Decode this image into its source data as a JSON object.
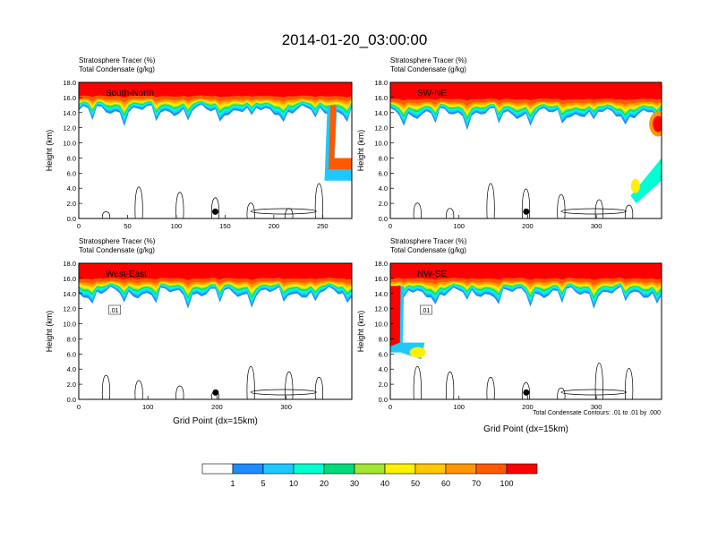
{
  "figure_title": "2014-01-20_03:00:00",
  "panel_header": {
    "line1": "Stratosphere Tracer   (%)",
    "line2": "Total Condensate   (g/kg)"
  },
  "footnote": "Total Condensate Contours: .01 to .01 by .000",
  "colors": {
    "levels": [
      "#ffffff",
      "#1e8cff",
      "#1ec8ff",
      "#00ffd2",
      "#00dc7a",
      "#00e600",
      "#a0e632",
      "#fff000",
      "#ffc800",
      "#ff9600",
      "#ff5a00",
      "#ff0000"
    ]
  },
  "chart_data": [
    {
      "type": "heatmap",
      "panel_label": "South-North",
      "ylabel": "Height (km)",
      "xlabel": "",
      "xlim": [
        0,
        280
      ],
      "ylim": [
        0,
        18
      ],
      "x_ticks": [
        0,
        50,
        100,
        150,
        200,
        250
      ],
      "y_ticks": [
        "0.0",
        "2.0",
        "4.0",
        "6.0",
        "8.0",
        "10.0",
        "12.0",
        "14.0",
        "16.0",
        "18.0"
      ],
      "tracer_top_km": 15.6,
      "marker_x": 140,
      "contour_label": ""
    },
    {
      "type": "heatmap",
      "panel_label": "SW-NE",
      "ylabel": "Height (km)",
      "xlabel": "",
      "xlim": [
        0,
        395
      ],
      "ylim": [
        0,
        18
      ],
      "x_ticks": [
        0,
        100,
        200,
        300
      ],
      "y_ticks": [
        "0.0",
        "2.0",
        "4.0",
        "6.0",
        "8.0",
        "10.0",
        "12.0",
        "14.0",
        "16.0",
        "18.0"
      ],
      "tracer_top_km": 15.2,
      "marker_x": 198,
      "contour_label": ""
    },
    {
      "type": "heatmap",
      "panel_label": "West-East",
      "ylabel": "Height (km)",
      "xlabel": "Grid Point (dx=15km)",
      "xlim": [
        0,
        395
      ],
      "ylim": [
        0,
        18
      ],
      "x_ticks": [
        0,
        100,
        200,
        300
      ],
      "y_ticks": [
        "0.0",
        "2.0",
        "4.0",
        "6.0",
        "8.0",
        "10.0",
        "12.0",
        "14.0",
        "16.0",
        "18.0"
      ],
      "tracer_top_km": 15.4,
      "marker_x": 198,
      "contour_label": ".01"
    },
    {
      "type": "heatmap",
      "panel_label": "NW-SE",
      "ylabel": "Height (km)",
      "xlabel": "Grid Point (dx=15km)",
      "xlim": [
        0,
        395
      ],
      "ylim": [
        0,
        18
      ],
      "x_ticks": [
        0,
        100,
        200,
        300
      ],
      "y_ticks": [
        "0.0",
        "2.0",
        "4.0",
        "6.0",
        "8.0",
        "10.0",
        "12.0",
        "14.0",
        "16.0",
        "18.0"
      ],
      "tracer_top_km": 15.4,
      "marker_x": 198,
      "contour_label": ".01"
    }
  ],
  "colorbar": {
    "labels": [
      "1",
      "5",
      "10",
      "20",
      "30",
      "40",
      "50",
      "60",
      "70",
      "100"
    ]
  }
}
